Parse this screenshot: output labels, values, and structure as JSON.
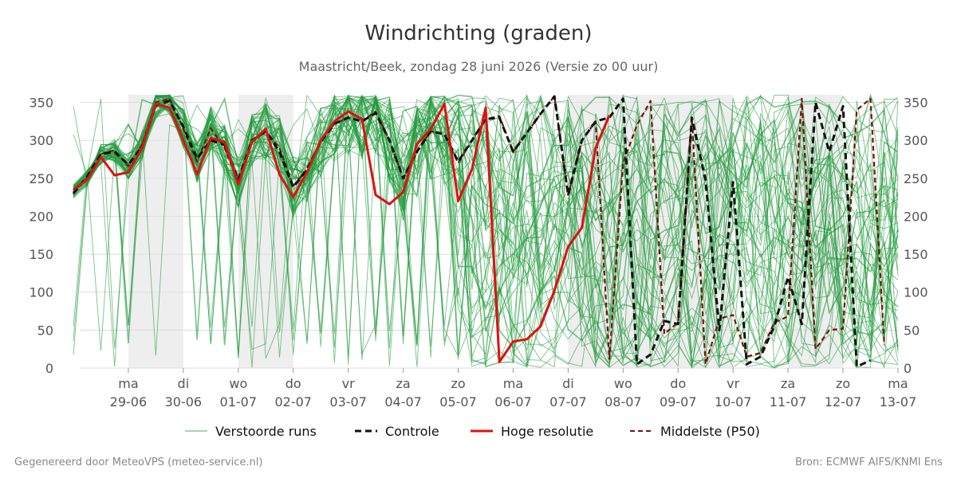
{
  "title": "Windrichting (graden)",
  "subtitle": "Maastricht/Beek, zondag 28 juni 2026 (Versie zo 00 uur)",
  "footer_left": "Gegenereerd door MeteoVPS (meteo-service.nl)",
  "footer_right": "Bron: ECMWF AIFS/KNMI Ens",
  "legend": [
    {
      "key": "ensemble",
      "label": "Verstoorde runs"
    },
    {
      "key": "control",
      "label": "Controle"
    },
    {
      "key": "hires",
      "label": "Hoge resolutie"
    },
    {
      "key": "median",
      "label": "Middelste (P50)"
    }
  ],
  "chart_data": {
    "type": "line",
    "x_unit": "days since 2026-06-28 00:00",
    "xlim": [
      0,
      15
    ],
    "ylim": [
      0,
      360
    ],
    "yticks": [
      0,
      50,
      100,
      150,
      200,
      250,
      300,
      350
    ],
    "grid": true,
    "legend_position": "bottom",
    "x_ticks": [
      {
        "x": 1,
        "day": "ma",
        "date": "29-06"
      },
      {
        "x": 2,
        "day": "di",
        "date": "30-06"
      },
      {
        "x": 3,
        "day": "wo",
        "date": "01-07"
      },
      {
        "x": 4,
        "day": "do",
        "date": "02-07"
      },
      {
        "x": 5,
        "day": "vr",
        "date": "03-07"
      },
      {
        "x": 6,
        "day": "za",
        "date": "04-07"
      },
      {
        "x": 7,
        "day": "zo",
        "date": "05-07"
      },
      {
        "x": 8,
        "day": "ma",
        "date": "06-07"
      },
      {
        "x": 9,
        "day": "di",
        "date": "07-07"
      },
      {
        "x": 10,
        "day": "wo",
        "date": "08-07"
      },
      {
        "x": 11,
        "day": "do",
        "date": "09-07"
      },
      {
        "x": 12,
        "day": "vr",
        "date": "10-07"
      },
      {
        "x": 13,
        "day": "za",
        "date": "11-07"
      },
      {
        "x": 14,
        "day": "zo",
        "date": "12-07"
      },
      {
        "x": 15,
        "day": "ma",
        "date": "13-07"
      }
    ],
    "shaded_bands": [
      [
        1,
        2
      ],
      [
        3,
        4
      ],
      [
        9,
        12
      ],
      [
        13,
        14
      ]
    ],
    "series": [
      {
        "key": "hires",
        "name": "Hoge resolutie",
        "color": "#dd1111",
        "x": [
          0,
          0.25,
          0.5,
          0.75,
          1,
          1.25,
          1.5,
          1.75,
          2,
          2.25,
          2.5,
          2.75,
          3,
          3.25,
          3.5,
          3.75,
          4,
          4.25,
          4.5,
          4.75,
          5,
          5.25,
          5.5,
          5.75,
          6,
          6.25,
          6.5,
          6.75,
          7,
          7.25,
          7.5,
          7.75,
          8,
          8.25,
          8.5,
          8.75,
          9,
          9.25,
          9.5,
          9.75,
          10
        ],
        "y": [
          235,
          248,
          278,
          254,
          258,
          290,
          348,
          343,
          300,
          255,
          303,
          298,
          242,
          298,
          315,
          255,
          225,
          258,
          300,
          325,
          338,
          328,
          228,
          216,
          232,
          295,
          315,
          348,
          220,
          262,
          343,
          8,
          35,
          38,
          55,
          102,
          160,
          185,
          290,
          333,
          null
        ]
      },
      {
        "key": "control",
        "name": "Controle",
        "color": "#111111",
        "x": [
          0,
          0.25,
          0.5,
          0.75,
          1,
          1.25,
          1.5,
          1.75,
          2,
          2.25,
          2.5,
          2.75,
          3,
          3.25,
          3.5,
          3.75,
          4,
          4.25,
          4.5,
          4.75,
          5,
          5.25,
          5.5,
          5.75,
          6,
          6.25,
          6.5,
          6.75,
          7,
          7.25,
          7.5,
          7.75,
          8,
          8.25,
          8.5,
          8.75,
          9,
          9.25,
          9.5,
          9.75,
          10,
          10.25,
          10.5,
          10.75,
          11,
          11.25,
          11.5,
          11.75,
          12,
          12.25,
          12.5,
          12.75,
          13,
          13.25,
          13.5,
          13.75,
          14,
          14.25,
          14.5,
          14.75,
          15
        ],
        "y": [
          230,
          252,
          282,
          285,
          268,
          292,
          346,
          352,
          318,
          276,
          300,
          294,
          248,
          300,
          312,
          285,
          238,
          262,
          298,
          322,
          330,
          325,
          336,
          300,
          250,
          285,
          312,
          308,
          272,
          300,
          328,
          330,
          285,
          310,
          335,
          358,
          228,
          300,
          325,
          330,
          355,
          5,
          18,
          62,
          58,
          330,
          248,
          50,
          245,
          5,
          15,
          55,
          120,
          58,
          350,
          285,
          345,
          2,
          10,
          null,
          null
        ]
      },
      {
        "key": "median",
        "name": "Middelste (P50)",
        "color": "#7a1010",
        "x": [
          0,
          0.25,
          0.5,
          0.75,
          1,
          1.25,
          1.5,
          1.75,
          2,
          2.25,
          2.5,
          2.75,
          3,
          3.25,
          3.5,
          3.75,
          4,
          4.25,
          4.5,
          4.75,
          5,
          5.25,
          5.5,
          5.75,
          6,
          6.25,
          6.5,
          6.75,
          7,
          7.25,
          7.5,
          7.75,
          8,
          8.25,
          8.5,
          8.75,
          9,
          9.25,
          9.5,
          9.75,
          10,
          10.25,
          10.5,
          10.75,
          11,
          11.25,
          11.5,
          11.75,
          12,
          12.25,
          12.5,
          12.75,
          13,
          13.25,
          13.5,
          13.75,
          14,
          14.25,
          14.5,
          14.75,
          15
        ],
        "y": [
          232,
          250,
          282,
          287,
          266,
          294,
          350,
          355,
          315,
          272,
          316,
          290,
          245,
          298,
          312,
          290,
          240,
          262,
          298,
          322,
          330,
          325,
          338,
          300,
          250,
          285,
          312,
          308,
          270,
          300,
          328,
          332,
          285,
          310,
          335,
          358,
          228,
          300,
          325,
          12,
          270,
          320,
          352,
          45,
          60,
          330,
          5,
          65,
          70,
          15,
          20,
          60,
          68,
          355,
          25,
          50,
          52,
          340,
          355,
          30,
          null
        ]
      }
    ],
    "ensemble": {
      "name": "Verstoorde runs",
      "color": "#1f9a3a",
      "members": 50,
      "x_step_days": 0.25,
      "x_start": 0,
      "x_end": 15,
      "y_range": [
        0,
        360
      ]
    }
  }
}
